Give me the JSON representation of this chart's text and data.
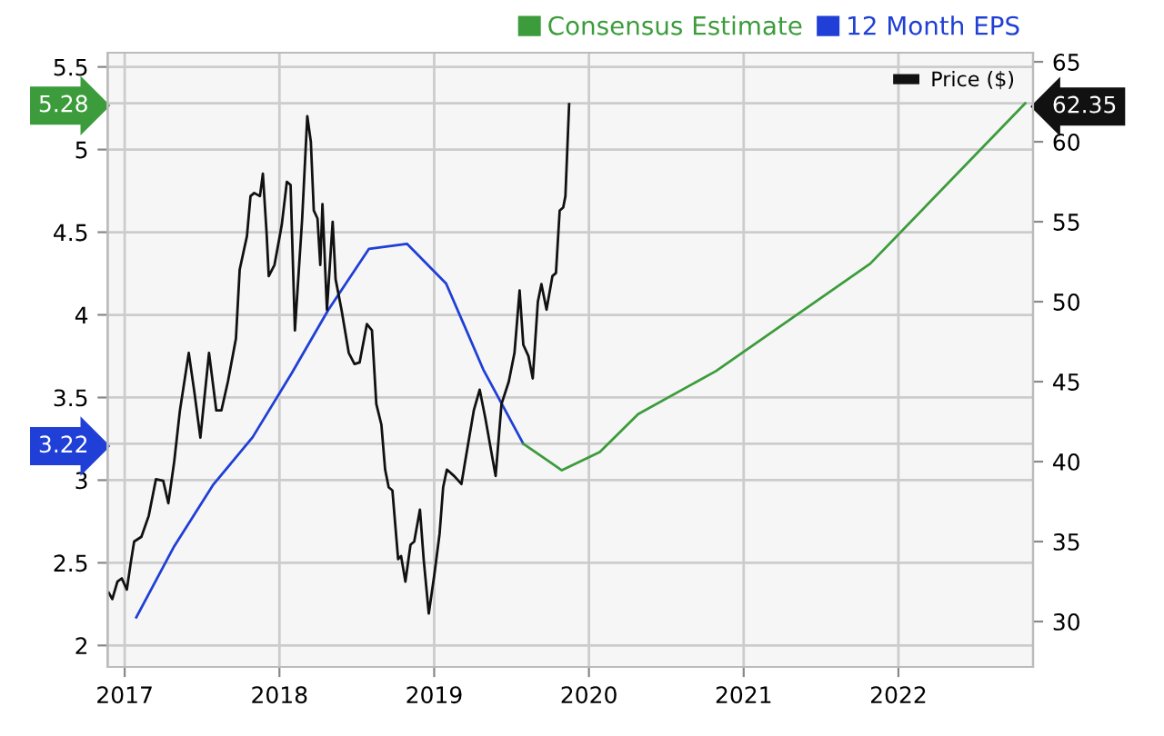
{
  "chart_data": {
    "type": "line",
    "xlim": [
      2016.89,
      2022.87
    ],
    "xticks": [
      2017,
      2018,
      2019,
      2020,
      2021,
      2022
    ],
    "ylim": [
      1.87,
      5.586
    ],
    "yticks": [
      2,
      2.5,
      3,
      3.5,
      4,
      4.5,
      5,
      5.5,
      3.22,
      5.28
    ],
    "y2lim": [
      27.16,
      65.57
    ],
    "y2ticks": [
      30,
      35,
      40,
      45,
      50,
      55,
      60,
      65,
      62.35
    ],
    "grid": true,
    "legend": "top right",
    "series": [
      {
        "name": "Price ($)",
        "axis": "y2",
        "color": "#111111",
        "x": [
          2016.897,
          2016.92,
          2016.953,
          2016.981,
          2017.014,
          2017.038,
          2017.061,
          2017.108,
          2017.155,
          2017.202,
          2017.249,
          2017.282,
          2017.32,
          2017.357,
          2017.414,
          2017.451,
          2017.489,
          2017.545,
          2017.592,
          2017.625,
          2017.667,
          2017.719,
          2017.743,
          2017.79,
          2017.813,
          2017.837,
          2017.874,
          2017.893,
          2017.917,
          2017.931,
          2017.968,
          2018.015,
          2018.048,
          2018.072,
          2018.1,
          2018.147,
          2018.18,
          2018.203,
          2018.222,
          2018.246,
          2018.264,
          2018.278,
          2018.307,
          2018.344,
          2018.363,
          2018.401,
          2018.448,
          2018.485,
          2018.518,
          2018.565,
          2018.598,
          2018.626,
          2018.659,
          2018.683,
          2018.706,
          2018.73,
          2018.767,
          2018.786,
          2018.814,
          2018.847,
          2018.871,
          2018.908,
          2018.932,
          2018.965,
          2019.002,
          2019.035,
          2019.058,
          2019.082,
          2019.129,
          2019.176,
          2019.2,
          2019.256,
          2019.294,
          2019.331,
          2019.364,
          2019.397,
          2019.435,
          2019.482,
          2019.519,
          2019.552,
          2019.576,
          2019.609,
          2019.637,
          2019.67,
          2019.693,
          2019.726,
          2019.764,
          2019.787,
          2019.811,
          2019.834,
          2019.848,
          2019.872
        ],
        "values": [
          31.8,
          31.4,
          32.5,
          32.7,
          32.0,
          33.6,
          35.0,
          35.3,
          36.6,
          38.9,
          38.8,
          37.4,
          40.0,
          43.2,
          46.8,
          44.3,
          41.5,
          46.8,
          43.2,
          43.2,
          45.0,
          47.7,
          52.0,
          54.1,
          56.6,
          56.8,
          56.6,
          58.0,
          54.3,
          51.6,
          52.3,
          54.8,
          57.5,
          57.3,
          48.2,
          55.2,
          61.6,
          60.0,
          55.7,
          55.2,
          52.3,
          56.1,
          49.5,
          55.0,
          51.4,
          49.5,
          46.8,
          46.1,
          46.2,
          48.6,
          48.2,
          43.6,
          42.3,
          39.5,
          38.4,
          38.2,
          33.9,
          34.1,
          32.5,
          34.8,
          35.0,
          37.0,
          33.9,
          30.5,
          33.0,
          35.5,
          38.4,
          39.5,
          39.1,
          38.6,
          40.0,
          43.2,
          44.5,
          42.7,
          40.9,
          39.1,
          43.6,
          45.0,
          46.8,
          50.7,
          47.3,
          46.6,
          45.2,
          50.0,
          51.1,
          49.5,
          51.6,
          51.8,
          55.7,
          55.9,
          56.6,
          62.35
        ]
      },
      {
        "name": "12 Month EPS",
        "color": "#1f3fd6",
        "x": [
          2017.075,
          2017.32,
          2017.57,
          2017.827,
          2018.081,
          2018.316,
          2018.579,
          2018.824,
          2019.077,
          2019.317,
          2019.576
        ],
        "values": [
          2.17,
          2.6,
          2.97,
          3.26,
          3.65,
          4.03,
          4.4,
          4.43,
          4.19,
          3.67,
          3.22
        ]
      },
      {
        "name": "Consensus Estimate",
        "color": "#3c9c3c",
        "x": [
          2019.576,
          2019.825,
          2020.07,
          2020.318,
          2020.821,
          2021.818,
          2022.819
        ],
        "values": [
          3.22,
          3.06,
          3.17,
          3.4,
          3.66,
          4.31,
          5.28
        ]
      }
    ]
  }
}
